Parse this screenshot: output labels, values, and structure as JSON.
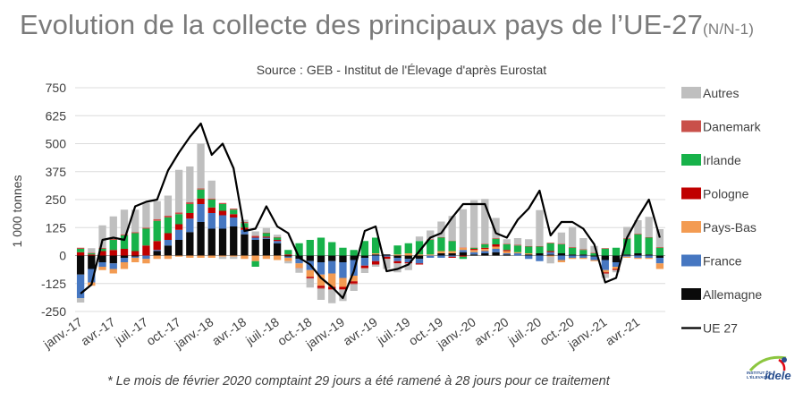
{
  "title": {
    "main": "Evolution de la collecte des principaux pays de l’UE-27",
    "suffix": "(N/N-1)"
  },
  "source": "Source : GEB - Institut de l'Élevage d'après Eurostat",
  "footnote": "* Le mois de février 2020 comptaint 29 jours a été ramené à 28 jours pour ce traitement",
  "logo": {
    "line1": "INSTITUT DE",
    "line2": "L'ÉLEVAGE",
    "brand": "idele"
  },
  "chart_data": {
    "type": "bar",
    "stacked": true,
    "ylabel": "1 000 tonnes",
    "ylim": [
      -250,
      750
    ],
    "yticks": [
      750,
      625,
      500,
      375,
      250,
      125,
      0,
      -125,
      -250
    ],
    "xtick_labels": [
      "janv.-17",
      "avr.-17",
      "juil.-17",
      "oct.-17",
      "janv.-18",
      "avr.-18",
      "juil.-18",
      "oct.-18",
      "janv.-19",
      "avr.-19",
      "juil.-19",
      "oct.-19",
      "janv.-20",
      "avr.-20",
      "juil.-20",
      "oct.-20",
      "janv.-21",
      "avr.-21"
    ],
    "legend_position": "right",
    "categories": [
      "janv.-17",
      "févr.-17",
      "mars-17",
      "avr.-17",
      "mai-17",
      "juin-17",
      "juil.-17",
      "août-17",
      "sept.-17",
      "oct.-17",
      "nov.-17",
      "déc.-17",
      "janv.-18",
      "févr.-18",
      "mars-18",
      "avr.-18",
      "mai-18",
      "juin-18",
      "juil.-18",
      "août-18",
      "sept.-18",
      "oct.-18",
      "nov.-18",
      "déc.-18",
      "janv.-19",
      "févr.-19",
      "mars-19",
      "avr.-19",
      "mai-19",
      "juin-19",
      "juil.-19",
      "août-19",
      "sept.-19",
      "oct.-19",
      "nov.-19",
      "déc.-19",
      "janv.-20",
      "févr.-20",
      "mars-20",
      "avr.-20",
      "mai-20",
      "juin-20",
      "juil.-20",
      "août-20",
      "sept.-20",
      "oct.-20",
      "nov.-20",
      "déc.-20",
      "janv.-21",
      "févr.-21",
      "mars-21",
      "avr.-21",
      "mai-21",
      "juin-21"
    ],
    "series": [
      {
        "name": "Allemagne",
        "color": "#0a0a0a",
        "values": [
          -85,
          -60,
          -30,
          -35,
          -10,
          -5,
          0,
          20,
          45,
          70,
          105,
          150,
          120,
          120,
          130,
          95,
          70,
          75,
          55,
          -5,
          -15,
          -25,
          -30,
          -25,
          -30,
          -20,
          -10,
          5,
          5,
          -10,
          -15,
          -15,
          0,
          10,
          10,
          15,
          5,
          10,
          15,
          5,
          0,
          5,
          10,
          5,
          10,
          5,
          5,
          -5,
          -20,
          -30,
          5,
          10,
          5,
          -10
        ]
      },
      {
        "name": "France",
        "color": "#4677c1",
        "values": [
          -105,
          -60,
          -20,
          -25,
          -20,
          -5,
          -15,
          5,
          25,
          45,
          60,
          80,
          70,
          60,
          40,
          20,
          10,
          5,
          10,
          -5,
          -20,
          -40,
          -55,
          -55,
          -70,
          -70,
          -35,
          -25,
          -5,
          -15,
          -15,
          -20,
          -10,
          -10,
          -5,
          10,
          10,
          10,
          15,
          5,
          10,
          -15,
          -25,
          10,
          -20,
          -10,
          -10,
          -15,
          -45,
          -20,
          -5,
          -10,
          -10,
          -25
        ]
      },
      {
        "name": "Pays-Bas",
        "color": "#f39b52",
        "values": [
          0,
          -15,
          -15,
          -20,
          -30,
          -20,
          -20,
          -15,
          -15,
          -5,
          -10,
          -10,
          -10,
          -5,
          -5,
          -15,
          -25,
          -15,
          -20,
          -15,
          -20,
          -30,
          -50,
          -60,
          -40,
          -25,
          0,
          5,
          0,
          5,
          10,
          5,
          5,
          10,
          10,
          10,
          10,
          10,
          10,
          10,
          5,
          5,
          0,
          -5,
          -10,
          -5,
          -5,
          -5,
          -10,
          -10,
          -5,
          -5,
          -5,
          -25
        ]
      },
      {
        "name": "Pologne",
        "color": "#c00000",
        "values": [
          15,
          5,
          20,
          25,
          30,
          20,
          45,
          40,
          30,
          25,
          25,
          25,
          25,
          20,
          15,
          10,
          5,
          5,
          5,
          5,
          0,
          -5,
          -10,
          -10,
          -10,
          -10,
          -10,
          -15,
          -10,
          -10,
          -5,
          -5,
          0,
          0,
          -5,
          -5,
          5,
          5,
          10,
          5,
          0,
          0,
          0,
          5,
          0,
          0,
          0,
          0,
          -5,
          -5,
          0,
          0,
          0,
          0
        ]
      },
      {
        "name": "Irlande",
        "color": "#17b24a",
        "values": [
          15,
          5,
          10,
          45,
          60,
          80,
          75,
          90,
          70,
          45,
          40,
          40,
          35,
          30,
          20,
          20,
          -25,
          15,
          10,
          20,
          55,
          70,
          80,
          60,
          35,
          25,
          65,
          70,
          0,
          40,
          45,
          60,
          65,
          60,
          45,
          -10,
          5,
          15,
          25,
          25,
          30,
          30,
          30,
          35,
          40,
          30,
          20,
          10,
          30,
          35,
          70,
          85,
          75,
          35
        ]
      },
      {
        "name": "Danemark",
        "color": "#c9504a",
        "values": [
          5,
          3,
          5,
          5,
          5,
          5,
          5,
          8,
          8,
          8,
          8,
          5,
          5,
          5,
          5,
          5,
          3,
          3,
          3,
          0,
          -2,
          -3,
          -3,
          -3,
          -3,
          -3,
          -3,
          0,
          0,
          0,
          0,
          0,
          2,
          2,
          2,
          2,
          2,
          3,
          3,
          3,
          3,
          3,
          3,
          3,
          3,
          3,
          3,
          3,
          3,
          0,
          3,
          3,
          3,
          3
        ]
      },
      {
        "name": "Autres",
        "color": "#bfbfbf",
        "values": [
          -20,
          20,
          100,
          100,
          110,
          100,
          110,
          80,
          90,
          190,
          160,
          200,
          80,
          -10,
          -10,
          10,
          20,
          20,
          10,
          -10,
          -20,
          -40,
          -50,
          -60,
          -50,
          -30,
          -20,
          -10,
          -45,
          -40,
          -30,
          20,
          40,
          70,
          110,
          170,
          210,
          200,
          90,
          20,
          30,
          30,
          160,
          -30,
          50,
          90,
          50,
          30,
          -20,
          -10,
          50,
          60,
          90,
          80
        ]
      }
    ],
    "line": {
      "name": "UE 27",
      "color": "#000000",
      "values": [
        -170,
        -130,
        70,
        80,
        70,
        220,
        240,
        250,
        380,
        460,
        530,
        590,
        450,
        500,
        390,
        110,
        120,
        220,
        130,
        100,
        -10,
        -40,
        -100,
        -140,
        -190,
        -70,
        110,
        130,
        -70,
        -60,
        -40,
        20,
        80,
        100,
        170,
        230,
        230,
        230,
        100,
        80,
        160,
        210,
        290,
        90,
        150,
        150,
        120,
        50,
        -120,
        -100,
        80,
        170,
        250,
        80
      ]
    }
  }
}
